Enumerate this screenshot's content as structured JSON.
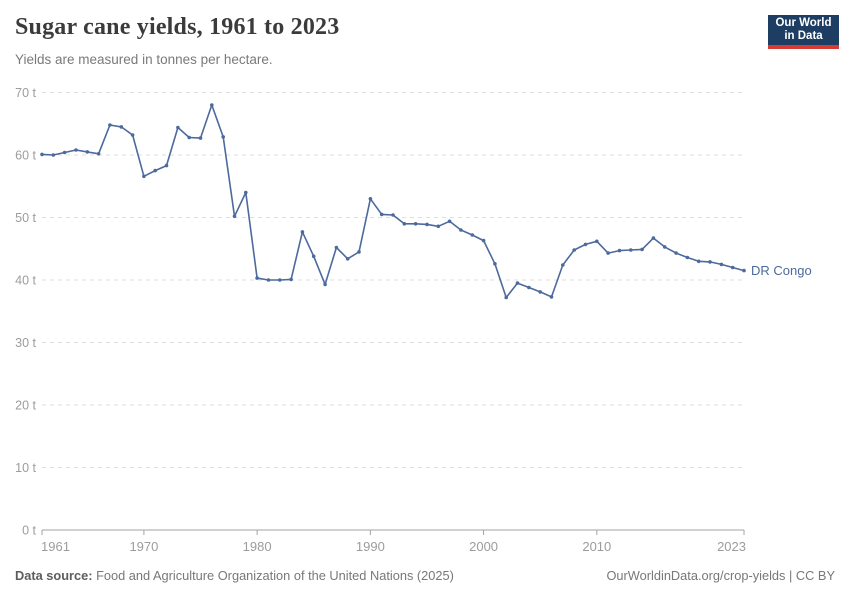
{
  "header": {
    "title": "Sugar cane yields, 1961 to 2023",
    "subtitle": "Yields are measured in tonnes per hectare."
  },
  "logo": {
    "line1": "Our World",
    "line2": "in Data",
    "bg_color": "#1d3d63",
    "accent_color": "#d73c34"
  },
  "footer": {
    "data_source_label": "Data source:",
    "data_source_text": " Food and Agriculture Organization of the United Nations (2025)",
    "attribution": "OurWorldinData.org/crop-yields | CC BY"
  },
  "chart_data": {
    "type": "line",
    "title": "Sugar cane yields, 1961 to 2023",
    "ylabel": "tonnes per hectare",
    "unit": "t",
    "xlim": [
      1961,
      2023
    ],
    "ylim": [
      0,
      70
    ],
    "y_ticks": [
      0,
      10,
      20,
      30,
      40,
      50,
      60,
      70
    ],
    "x_ticks": [
      1961,
      1970,
      1980,
      1990,
      2000,
      2010,
      2023
    ],
    "grid": "horizontal-dashed",
    "legend_position": "end-of-line",
    "axis_color": "#a3a3a3",
    "gridline_color": "#dedede",
    "series": [
      {
        "name": "DR Congo",
        "color": "#4C6A9C",
        "x": [
          1961,
          1962,
          1963,
          1964,
          1965,
          1966,
          1967,
          1968,
          1969,
          1970,
          1971,
          1972,
          1973,
          1974,
          1975,
          1976,
          1977,
          1978,
          1979,
          1980,
          1981,
          1982,
          1983,
          1984,
          1985,
          1986,
          1987,
          1988,
          1989,
          1990,
          1991,
          1992,
          1993,
          1994,
          1995,
          1996,
          1997,
          1998,
          1999,
          2000,
          2001,
          2002,
          2003,
          2004,
          2005,
          2006,
          2007,
          2008,
          2009,
          2010,
          2011,
          2012,
          2013,
          2014,
          2015,
          2016,
          2017,
          2018,
          2019,
          2020,
          2021,
          2022,
          2023
        ],
        "values": [
          60.1,
          60,
          60.4,
          60.8,
          60.5,
          60.2,
          64.8,
          64.5,
          63.2,
          56.6,
          57.5,
          58.3,
          64.4,
          62.8,
          62.7,
          68,
          62.9,
          50.2,
          54,
          40.3,
          40,
          40,
          40.1,
          47.7,
          43.8,
          39.3,
          45.2,
          43.4,
          44.5,
          53,
          50.5,
          50.4,
          49,
          49,
          48.9,
          48.6,
          49.4,
          48,
          47.2,
          46.3,
          42.6,
          37.2,
          39.5,
          38.8,
          38.1,
          37.3,
          42.4,
          44.8,
          45.7,
          46.2,
          44.3,
          44.7,
          44.8,
          44.9,
          46.7,
          45.3,
          44.3,
          43.6,
          43,
          42.9,
          42.5,
          42,
          41.5
        ]
      }
    ]
  }
}
